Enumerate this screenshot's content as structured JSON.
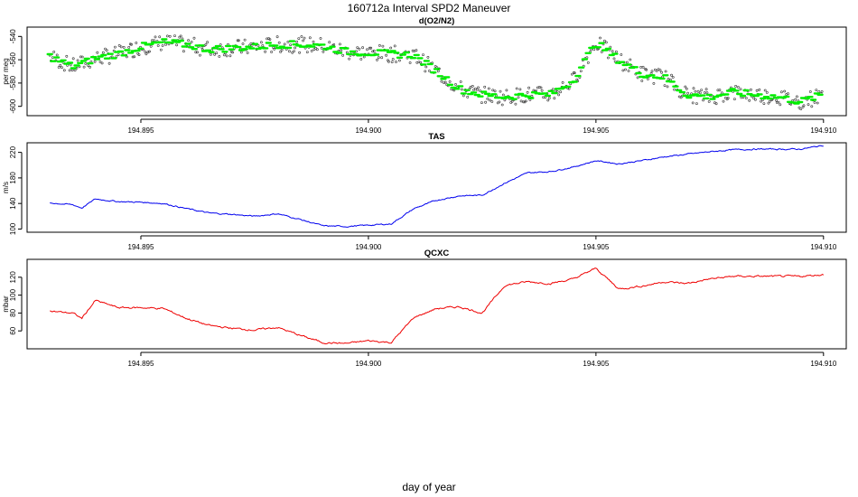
{
  "figure": {
    "title": "160712a   Interval SPD2 Maneuver",
    "xlabel": "day of year"
  },
  "chart_data": [
    {
      "type": "scatter",
      "title": "d(O2/N2)",
      "ylabel": "per meg",
      "xlim": [
        194.8925,
        194.9105
      ],
      "ylim": [
        -608,
        -532
      ],
      "yticks": [
        -600,
        -580,
        -560,
        -540
      ],
      "xticks": [
        194.895,
        194.9,
        194.905,
        194.91
      ],
      "colors": {
        "dots": "#333333",
        "segments": "#00ee00"
      },
      "series": [
        {
          "x": [
            194.893,
            194.8935,
            194.894,
            194.8945,
            194.895,
            194.8955,
            194.896,
            194.8965,
            194.897,
            194.8975,
            194.898,
            194.8985,
            194.899,
            194.8995,
            194.9,
            194.9005,
            194.901,
            194.9015,
            194.902,
            194.9025,
            194.903,
            194.9035,
            194.904,
            194.9045,
            194.905,
            194.9055,
            194.906,
            194.9065,
            194.907,
            194.9075,
            194.908,
            194.9085,
            194.909,
            194.9095,
            194.91
          ],
          "values": [
            -557,
            -566,
            -559,
            -555,
            -549,
            -545,
            -547,
            -551,
            -550,
            -549,
            -547,
            -547,
            -548,
            -553,
            -554,
            -555,
            -556,
            -570,
            -585,
            -590,
            -592,
            -590,
            -590,
            -578,
            -545,
            -560,
            -572,
            -575,
            -590,
            -592,
            -588,
            -590,
            -592,
            -596,
            -590
          ]
        }
      ]
    },
    {
      "type": "line",
      "title": "TAS",
      "ylabel": "m/s",
      "xlim": [
        194.8925,
        194.9105
      ],
      "ylim": [
        95,
        235
      ],
      "yticks": [
        100,
        140,
        180,
        220
      ],
      "xticks": [
        194.895,
        194.9,
        194.905,
        194.91
      ],
      "colors": {
        "line": "#0000ee"
      },
      "series": [
        {
          "x": [
            194.893,
            194.8935,
            194.8937,
            194.894,
            194.8945,
            194.895,
            194.8955,
            194.896,
            194.8965,
            194.897,
            194.8975,
            194.898,
            194.8985,
            194.899,
            194.8995,
            194.9,
            194.9005,
            194.901,
            194.9015,
            194.902,
            194.9025,
            194.903,
            194.9035,
            194.904,
            194.9045,
            194.905,
            194.9055,
            194.906,
            194.9065,
            194.907,
            194.9075,
            194.908,
            194.9085,
            194.909,
            194.9095,
            194.91
          ],
          "values": [
            141,
            138,
            133,
            147,
            143,
            142,
            140,
            132,
            125,
            123,
            120,
            124,
            115,
            105,
            104,
            106,
            108,
            132,
            145,
            152,
            153,
            172,
            188,
            190,
            197,
            207,
            202,
            207,
            213,
            217,
            221,
            224,
            225,
            225,
            225,
            231
          ]
        }
      ]
    },
    {
      "type": "line",
      "title": "QCXC",
      "ylabel": "mbar",
      "xlim": [
        194.8925,
        194.9105
      ],
      "ylim": [
        40,
        140
      ],
      "yticks": [
        60,
        80,
        100,
        120
      ],
      "xticks": [
        194.895,
        194.9,
        194.905,
        194.91
      ],
      "colors": {
        "line": "#ee0000"
      },
      "series": [
        {
          "x": [
            194.893,
            194.8935,
            194.8937,
            194.894,
            194.8945,
            194.895,
            194.8955,
            194.896,
            194.8965,
            194.897,
            194.8975,
            194.898,
            194.8985,
            194.899,
            194.8995,
            194.9,
            194.9005,
            194.901,
            194.9015,
            194.902,
            194.9025,
            194.903,
            194.9035,
            194.904,
            194.9045,
            194.905,
            194.9055,
            194.906,
            194.9065,
            194.907,
            194.9075,
            194.908,
            194.9085,
            194.909,
            194.9095,
            194.91
          ],
          "values": [
            82,
            80,
            74,
            94,
            86,
            86,
            85,
            74,
            66,
            63,
            61,
            64,
            55,
            47,
            46,
            49,
            47,
            75,
            85,
            87,
            80,
            111,
            115,
            113,
            118,
            130,
            107,
            110,
            115,
            113,
            118,
            121,
            121,
            121,
            121,
            123
          ]
        }
      ]
    }
  ]
}
